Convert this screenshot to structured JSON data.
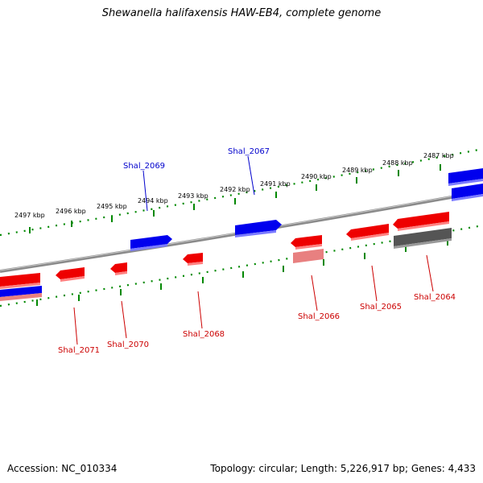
{
  "title": "Shewanella halifaxensis HAW-EB4, complete genome",
  "footer": {
    "accession": "Accession: NC_010334",
    "summary": "Topology: circular; Length: 5,226,917 bp; Genes: 4,433"
  },
  "colors": {
    "forward_gene": "#0000ee",
    "reverse_gene": "#ee0000",
    "pseudo_reverse": "#e88080",
    "pseudo_forward": "#555555",
    "backbone": "#888888",
    "ticks": "#008800",
    "forward_label": "#0000cc",
    "reverse_label": "#cc0000"
  },
  "kbp_ticks": [
    "2497 kbp",
    "2496 kbp",
    "2495 kbp",
    "2494 kbp",
    "2493 kbp",
    "2492 kbp",
    "2491 kbp",
    "2490 kbp",
    "2489 kbp",
    "2488 kbp",
    "2487 kbp"
  ],
  "gene_labels": {
    "forward": [
      "Shal_2069",
      "Shal_2067"
    ],
    "reverse": [
      "Shal_2071",
      "Shal_2070",
      "Shal_2068",
      "Shal_2066",
      "Shal_2065",
      "Shal_2064"
    ]
  }
}
